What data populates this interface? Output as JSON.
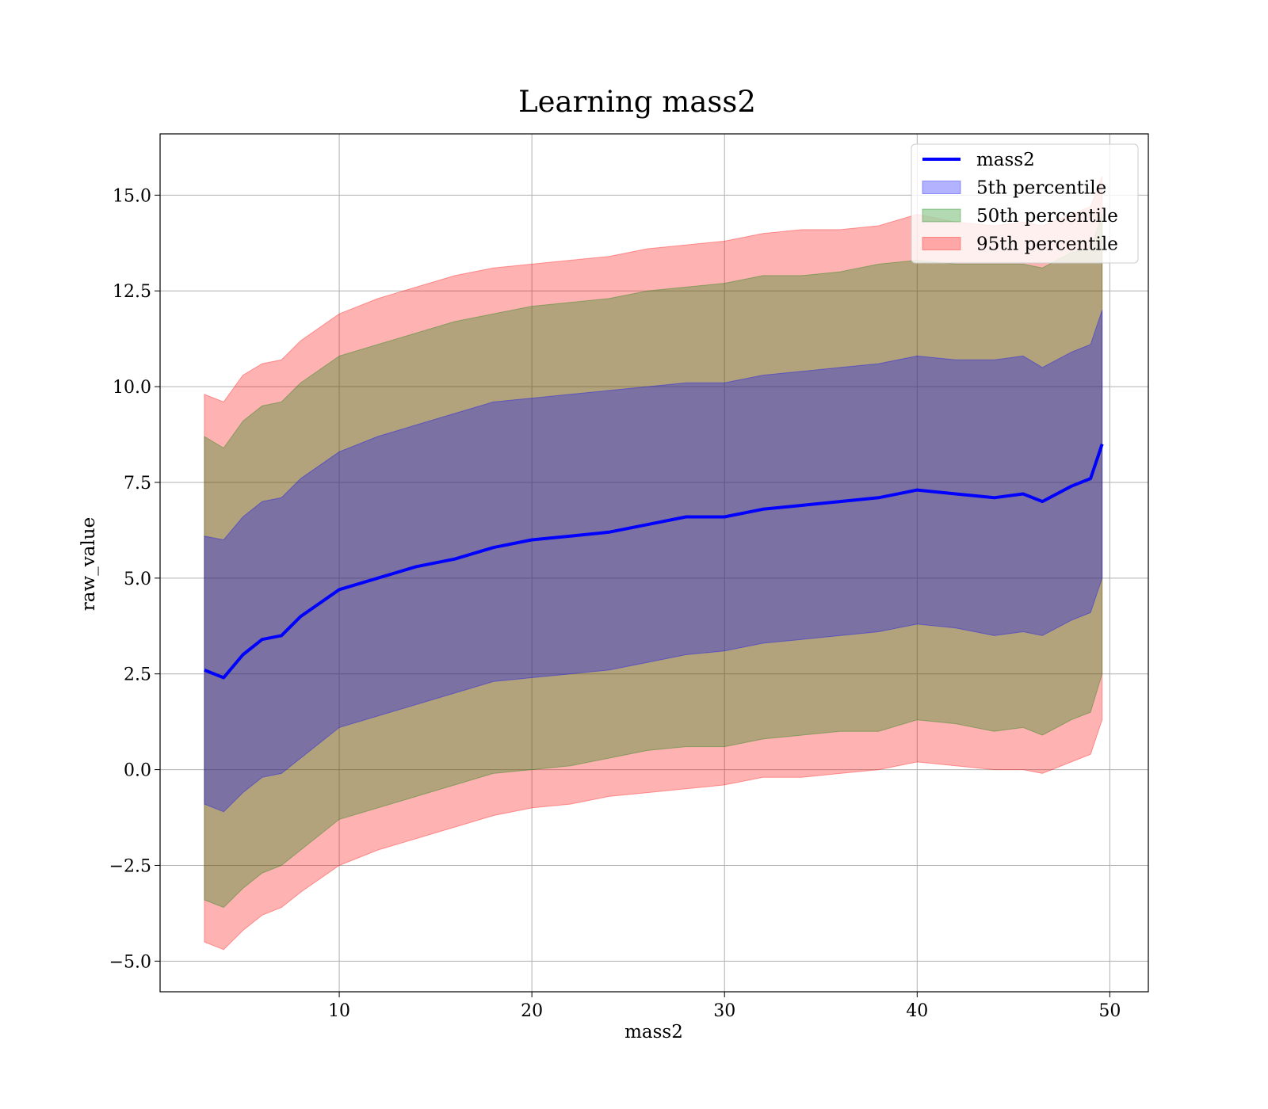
{
  "chart_data": {
    "type": "area",
    "title": "Learning mass2",
    "xlabel": "mass2",
    "ylabel": "raw_value",
    "xlim": [
      0.7,
      52.0
    ],
    "ylim": [
      -5.8,
      16.6
    ],
    "xticks": [
      10,
      20,
      30,
      40,
      50
    ],
    "xtick_labels": [
      "10",
      "20",
      "30",
      "40",
      "50"
    ],
    "yticks": [
      -5.0,
      -2.5,
      0.0,
      2.5,
      5.0,
      7.5,
      10.0,
      12.5,
      15.0
    ],
    "ytick_labels": [
      "−5.0",
      "−2.5",
      "0.0",
      "2.5",
      "5.0",
      "7.5",
      "10.0",
      "12.5",
      "15.0"
    ],
    "grid": true,
    "legend_position": "top-right",
    "x": [
      3.0,
      4.0,
      5.0,
      6.0,
      7.0,
      8.0,
      10.0,
      12.0,
      14.0,
      16.0,
      18.0,
      20.0,
      22.0,
      24.0,
      26.0,
      28.0,
      30.0,
      32.0,
      34.0,
      36.0,
      38.0,
      40.0,
      42.0,
      44.0,
      45.5,
      46.5,
      48.0,
      49.0,
      49.6
    ],
    "series": [
      {
        "name": "mass2",
        "kind": "line",
        "color": "#0000ff",
        "values": [
          2.6,
          2.4,
          3.0,
          3.4,
          3.5,
          4.0,
          4.7,
          5.0,
          5.3,
          5.5,
          5.8,
          6.0,
          6.1,
          6.2,
          6.4,
          6.6,
          6.6,
          6.8,
          6.9,
          7.0,
          7.1,
          7.3,
          7.2,
          7.1,
          7.2,
          7.0,
          7.4,
          7.6,
          8.5
        ]
      },
      {
        "name": "5th percentile",
        "kind": "band",
        "color": "#0000ff",
        "upper": [
          6.1,
          6.0,
          6.6,
          7.0,
          7.1,
          7.6,
          8.3,
          8.7,
          9.0,
          9.3,
          9.6,
          9.7,
          9.8,
          9.9,
          10.0,
          10.1,
          10.1,
          10.3,
          10.4,
          10.5,
          10.6,
          10.8,
          10.7,
          10.7,
          10.8,
          10.5,
          10.9,
          11.1,
          12.0
        ],
        "lower": [
          -0.9,
          -1.1,
          -0.6,
          -0.2,
          -0.1,
          0.3,
          1.1,
          1.4,
          1.7,
          2.0,
          2.3,
          2.4,
          2.5,
          2.6,
          2.8,
          3.0,
          3.1,
          3.3,
          3.4,
          3.5,
          3.6,
          3.8,
          3.7,
          3.5,
          3.6,
          3.5,
          3.9,
          4.1,
          5.0
        ]
      },
      {
        "name": "50th percentile",
        "kind": "band",
        "color": "#008000",
        "upper": [
          8.7,
          8.4,
          9.1,
          9.5,
          9.6,
          10.1,
          10.8,
          11.1,
          11.4,
          11.7,
          11.9,
          12.1,
          12.2,
          12.3,
          12.5,
          12.6,
          12.7,
          12.9,
          12.9,
          13.0,
          13.2,
          13.3,
          13.2,
          13.2,
          13.2,
          13.1,
          13.5,
          13.6,
          14.5
        ],
        "lower": [
          -3.4,
          -3.6,
          -3.1,
          -2.7,
          -2.5,
          -2.1,
          -1.3,
          -1.0,
          -0.7,
          -0.4,
          -0.1,
          0.0,
          0.1,
          0.3,
          0.5,
          0.6,
          0.6,
          0.8,
          0.9,
          1.0,
          1.0,
          1.3,
          1.2,
          1.0,
          1.1,
          0.9,
          1.3,
          1.5,
          2.5
        ]
      },
      {
        "name": "95th percentile",
        "kind": "band",
        "color": "#ff0000",
        "upper": [
          9.8,
          9.6,
          10.3,
          10.6,
          10.7,
          11.2,
          11.9,
          12.3,
          12.6,
          12.9,
          13.1,
          13.2,
          13.3,
          13.4,
          13.6,
          13.7,
          13.8,
          14.0,
          14.1,
          14.1,
          14.2,
          14.5,
          14.3,
          14.2,
          14.3,
          14.2,
          14.5,
          14.7,
          15.5
        ],
        "lower": [
          -4.5,
          -4.7,
          -4.2,
          -3.8,
          -3.6,
          -3.2,
          -2.5,
          -2.1,
          -1.8,
          -1.5,
          -1.2,
          -1.0,
          -0.9,
          -0.7,
          -0.6,
          -0.5,
          -0.4,
          -0.2,
          -0.2,
          -0.1,
          0.0,
          0.2,
          0.1,
          0.0,
          0.0,
          -0.1,
          0.2,
          0.4,
          1.3
        ]
      }
    ]
  }
}
